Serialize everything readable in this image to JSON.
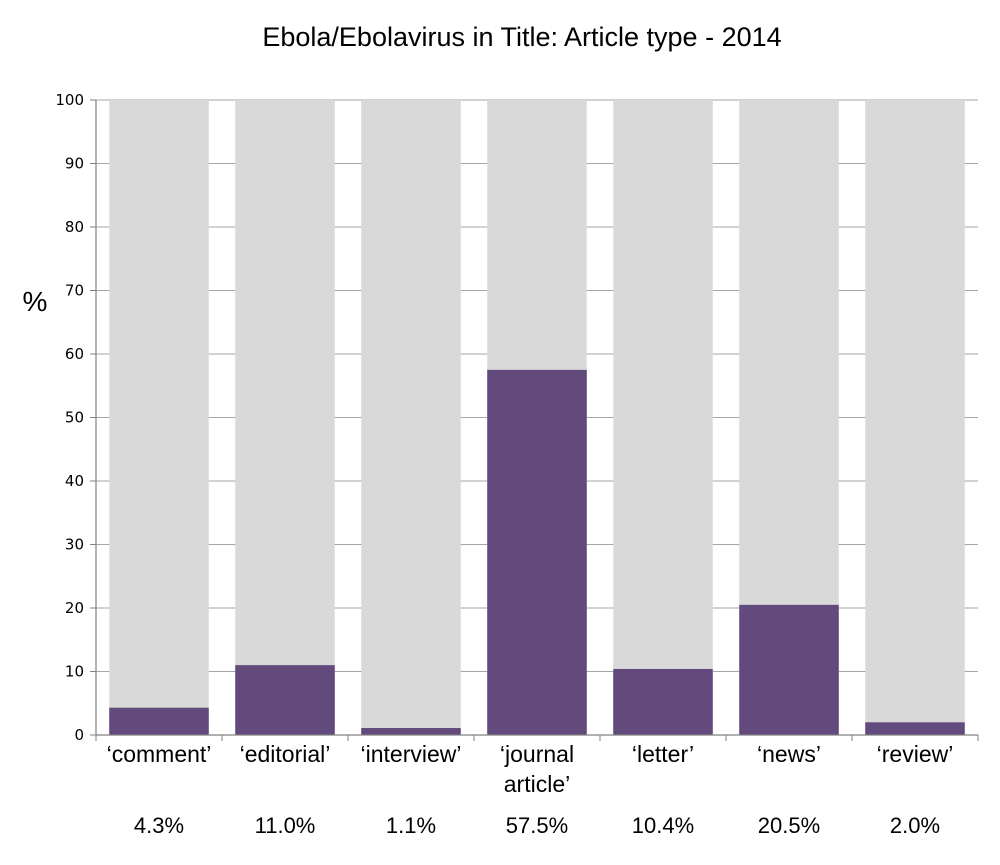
{
  "chart_data": {
    "type": "bar",
    "title": "Ebola/Ebolavirus in Title: Article type - 2014",
    "ylabel": "%",
    "xlabel": "",
    "ylim": [
      0,
      100
    ],
    "yticks": [
      0,
      10,
      20,
      30,
      40,
      50,
      60,
      70,
      80,
      90,
      100
    ],
    "grid": true,
    "legend": "none",
    "categories": [
      [
        "‘comment’"
      ],
      [
        "‘editorial’"
      ],
      [
        "‘interview’"
      ],
      [
        "‘journal",
        "article’"
      ],
      [
        "‘letter’"
      ],
      [
        "‘news’"
      ],
      [
        "‘review’"
      ]
    ],
    "values": [
      4.3,
      11.0,
      1.1,
      57.5,
      10.4,
      20.5,
      2.0
    ],
    "value_labels": [
      "4.3%",
      "11.0%",
      "1.1%",
      "57.5%",
      "10.4%",
      "20.5%",
      "2.0%"
    ],
    "background_value": 100,
    "colors": {
      "bar": "#634a7c",
      "background_bar": "#d9d9d9",
      "grid": "#a6a6a6",
      "axis": "#808080"
    }
  }
}
